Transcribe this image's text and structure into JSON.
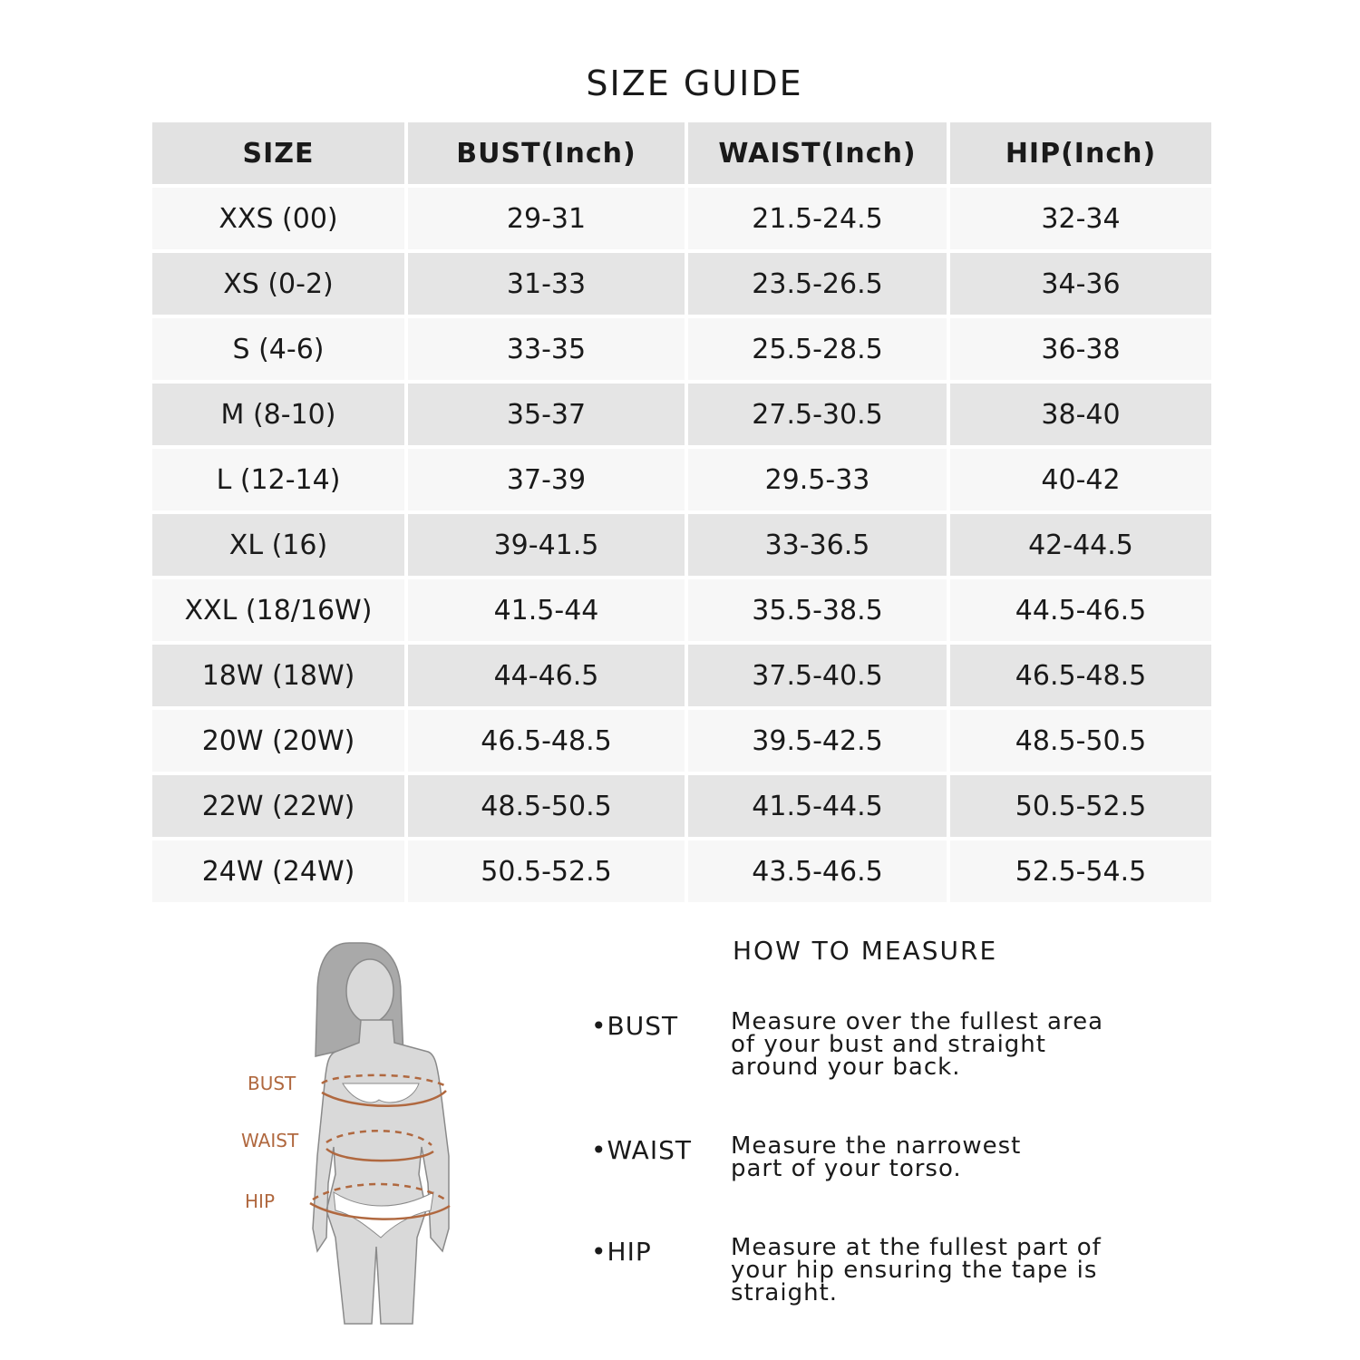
{
  "title": "SIZE GUIDE",
  "table": {
    "headers": [
      "SIZE",
      "BUST(Inch)",
      "WAIST(Inch)",
      "HIP(Inch)"
    ],
    "rows": [
      [
        "XXS (00)",
        "29-31",
        "21.5-24.5",
        "32-34"
      ],
      [
        "XS (0-2)",
        "31-33",
        "23.5-26.5",
        "34-36"
      ],
      [
        "S (4-6)",
        "33-35",
        "25.5-28.5",
        "36-38"
      ],
      [
        "M (8-10)",
        "35-37",
        "27.5-30.5",
        "38-40"
      ],
      [
        "L (12-14)",
        "37-39",
        "29.5-33",
        "40-42"
      ],
      [
        "XL (16)",
        "39-41.5",
        "33-36.5",
        "42-44.5"
      ],
      [
        "XXL (18/16W)",
        "41.5-44",
        "35.5-38.5",
        "44.5-46.5"
      ],
      [
        "18W (18W)",
        "44-46.5",
        "37.5-40.5",
        "46.5-48.5"
      ],
      [
        "20W (20W)",
        "46.5-48.5",
        "39.5-42.5",
        "48.5-50.5"
      ],
      [
        "22W (22W)",
        "48.5-50.5",
        "41.5-44.5",
        "50.5-52.5"
      ],
      [
        "24W (24W)",
        "50.5-52.5",
        "43.5-46.5",
        "52.5-54.5"
      ]
    ]
  },
  "figure": {
    "labels": [
      "BUST",
      "WAIST",
      "HIP"
    ],
    "accent_color": "#b0683f"
  },
  "how_to_measure": {
    "title": "HOW TO MEASURE",
    "items": [
      {
        "term": "•BUST",
        "lines": [
          "Measure over the fullest area",
          "of your bust and straight",
          "around your back."
        ]
      },
      {
        "term": "•WAIST",
        "lines": [
          "Measure the narrowest",
          "part of your torso."
        ]
      },
      {
        "term": "•HIP",
        "lines": [
          "Measure at the fullest part of",
          "your hip ensuring the tape is",
          "straight."
        ]
      }
    ]
  }
}
